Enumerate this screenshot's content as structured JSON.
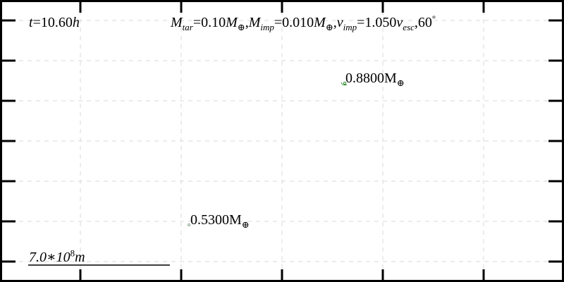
{
  "time_label": {
    "var": "t",
    "eq": "=",
    "value": "10.60",
    "unit": "h"
  },
  "params_label": {
    "m_tar_sym": "M",
    "m_tar_sub": "tar",
    "m_tar_val": "=0.10",
    "m_imp_sym": "M",
    "m_imp_sub": "imp",
    "m_imp_val": "=0.010",
    "v_imp_sym": "v",
    "v_imp_sub": "imp",
    "v_imp_val": "=1.050",
    "v_esc_sym": "v",
    "v_esc_sub": "esc",
    "angle": "60",
    "angle_unit": "°",
    "earth_symbol": "⊕",
    "comma": ","
  },
  "bodies": [
    {
      "mass": "0.8800",
      "unit": "M",
      "earth_symbol": "⊕",
      "color": "#2e8b2e"
    },
    {
      "mass": "0.5300",
      "unit": "M",
      "earth_symbol": "⊕",
      "color": "#8aa68a"
    }
  ],
  "scale_bar": {
    "mantissa": "7.0",
    "times": "∗",
    "base": "10",
    "exponent": "8",
    "unit": "m"
  },
  "colors": {
    "frame": "#000000",
    "grid": "#d9d9d9",
    "background": "#ffffff"
  }
}
